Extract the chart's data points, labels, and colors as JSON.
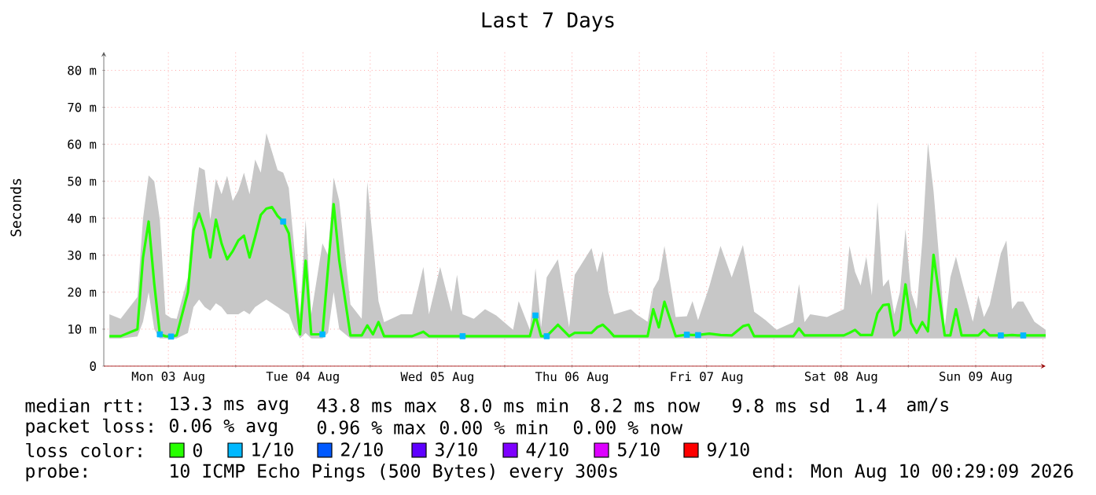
{
  "chart_data": {
    "type": "line",
    "title": "Last 7 Days",
    "ylabel": "Seconds",
    "legend_title": "loss color:",
    "legend": "bottom",
    "grid": true,
    "xlim": [
      "2026-08-03T00:29",
      "2026-08-10T00:29"
    ],
    "xticks": [
      {
        "value": "2026-08-03T12:00",
        "label": "Mon 03 Aug"
      },
      {
        "value": "2026-08-04T00:00",
        "label": null
      },
      {
        "value": "2026-08-04T12:00",
        "label": "Tue 04 Aug"
      },
      {
        "value": "2026-08-05T00:00",
        "label": null
      },
      {
        "value": "2026-08-05T12:00",
        "label": "Wed 05 Aug"
      },
      {
        "value": "2026-08-06T00:00",
        "label": null
      },
      {
        "value": "2026-08-06T12:00",
        "label": "Thu 06 Aug"
      },
      {
        "value": "2026-08-07T00:00",
        "label": null
      },
      {
        "value": "2026-08-07T12:00",
        "label": "Fri 07 Aug"
      },
      {
        "value": "2026-08-08T00:00",
        "label": null
      },
      {
        "value": "2026-08-08T12:00",
        "label": "Sat 08 Aug"
      },
      {
        "value": "2026-08-09T00:00",
        "label": null
      },
      {
        "value": "2026-08-09T12:00",
        "label": "Sun 09 Aug"
      },
      {
        "value": "2026-08-10T00:00",
        "label": null
      }
    ],
    "ylim": [
      0,
      85
    ],
    "yticks": [
      0,
      {
        "value": 10,
        "label": "10 m"
      },
      {
        "value": 20,
        "label": "20 m"
      },
      {
        "value": 30,
        "label": "30 m"
      },
      {
        "value": 40,
        "label": "40 m"
      },
      {
        "value": 50,
        "label": "50 m"
      },
      {
        "value": 60,
        "label": "60 m"
      },
      {
        "value": 70,
        "label": "70 m"
      },
      {
        "value": 80,
        "label": "80 m"
      }
    ],
    "series": [
      {
        "name": "0",
        "color": "#26ff00",
        "x": [
          "2026-08-03T01:29",
          "2026-08-03T03:29",
          "2026-08-03T06:29",
          "2026-08-03T07:29",
          "2026-08-03T08:29",
          "2026-08-03T09:29",
          "2026-08-03T10:29",
          "2026-08-03T11:29",
          "2026-08-03T12:29",
          "2026-08-03T13:29",
          "2026-08-03T15:29",
          "2026-08-03T16:29",
          "2026-08-03T17:29",
          "2026-08-03T18:29",
          "2026-08-03T19:29",
          "2026-08-03T20:29",
          "2026-08-03T21:29",
          "2026-08-03T22:29",
          "2026-08-03T23:29",
          "2026-08-04T00:29",
          "2026-08-04T01:29",
          "2026-08-04T02:29",
          "2026-08-04T03:29",
          "2026-08-04T04:29",
          "2026-08-04T05:29",
          "2026-08-04T06:29",
          "2026-08-04T07:29",
          "2026-08-04T08:29",
          "2026-08-04T09:29",
          "2026-08-04T10:29",
          "2026-08-04T11:29",
          "2026-08-04T12:29",
          "2026-08-04T13:29",
          "2026-08-04T15:29",
          "2026-08-04T16:29",
          "2026-08-04T17:29",
          "2026-08-04T18:29",
          "2026-08-04T20:29",
          "2026-08-04T22:29",
          "2026-08-04T23:29",
          "2026-08-05T00:29",
          "2026-08-05T01:29",
          "2026-08-05T02:29",
          "2026-08-05T05:29",
          "2026-08-05T07:29",
          "2026-08-05T09:29",
          "2026-08-05T10:29",
          "2026-08-05T12:29",
          "2026-08-05T14:29",
          "2026-08-05T15:29",
          "2026-08-05T16:29",
          "2026-08-05T18:29",
          "2026-08-05T20:29",
          "2026-08-05T22:29",
          "2026-08-06T01:29",
          "2026-08-06T02:29",
          "2026-08-06T04:29",
          "2026-08-06T05:29",
          "2026-08-06T06:29",
          "2026-08-06T07:29",
          "2026-08-06T09:29",
          "2026-08-06T11:29",
          "2026-08-06T12:29",
          "2026-08-06T15:29",
          "2026-08-06T16:29",
          "2026-08-06T17:29",
          "2026-08-06T18:29",
          "2026-08-06T19:29",
          "2026-08-06T22:29",
          "2026-08-06T23:29",
          "2026-08-07T01:29",
          "2026-08-07T02:29",
          "2026-08-07T03:29",
          "2026-08-07T04:29",
          "2026-08-07T06:29",
          "2026-08-07T08:29",
          "2026-08-07T09:29",
          "2026-08-07T10:29",
          "2026-08-07T12:29",
          "2026-08-07T14:29",
          "2026-08-07T16:29",
          "2026-08-07T18:29",
          "2026-08-07T19:29",
          "2026-08-07T20:29",
          "2026-08-07T22:29",
          "2026-08-08T00:29",
          "2026-08-08T03:29",
          "2026-08-08T04:29",
          "2026-08-08T05:29",
          "2026-08-08T06:29",
          "2026-08-08T09:29",
          "2026-08-08T12:29",
          "2026-08-08T13:29",
          "2026-08-08T14:29",
          "2026-08-08T15:29",
          "2026-08-08T16:29",
          "2026-08-08T17:29",
          "2026-08-08T18:29",
          "2026-08-08T19:29",
          "2026-08-08T20:29",
          "2026-08-08T21:29",
          "2026-08-08T22:29",
          "2026-08-08T23:29",
          "2026-08-09T00:29",
          "2026-08-09T01:29",
          "2026-08-09T02:29",
          "2026-08-09T03:29",
          "2026-08-09T04:29",
          "2026-08-09T06:29",
          "2026-08-09T07:29",
          "2026-08-09T08:29",
          "2026-08-09T09:29",
          "2026-08-09T11:29",
          "2026-08-09T12:29",
          "2026-08-09T13:29",
          "2026-08-09T14:29",
          "2026-08-09T16:29",
          "2026-08-09T17:29",
          "2026-08-09T18:29",
          "2026-08-09T19:29",
          "2026-08-09T20:29",
          "2026-08-09T22:29",
          "2026-08-10T00:29"
        ],
        "values": [
          8.1,
          8.1,
          10,
          29.4,
          39.1,
          22.3,
          8.6,
          8.1,
          8.0,
          8.3,
          20,
          36.7,
          41.3,
          36.6,
          29.4,
          39.6,
          33.2,
          28.9,
          31.1,
          34,
          35.3,
          29.4,
          35,
          40.9,
          42.6,
          43,
          40.6,
          39.1,
          35.9,
          22.6,
          8.6,
          28.5,
          8.6,
          8.6,
          26.5,
          43.8,
          28.5,
          8.3,
          8.3,
          11,
          8.6,
          11.9,
          8.1,
          8.1,
          8.1,
          9.3,
          8.1,
          8.1,
          8.1,
          8.1,
          8.1,
          8.1,
          8.1,
          8.1,
          8.1,
          8.1,
          8.1,
          13.7,
          8.1,
          8.1,
          11.2,
          8.1,
          9,
          9,
          10.5,
          11.2,
          9.8,
          8.1,
          8.1,
          8.1,
          8.1,
          15.4,
          10.5,
          17.4,
          8.1,
          8.5,
          8.4,
          8.4,
          8.8,
          8.4,
          8.3,
          10.8,
          11.2,
          8.1,
          8.1,
          8.1,
          8.1,
          10.2,
          8.3,
          8.3,
          8.3,
          8.3,
          9,
          9.8,
          8.4,
          8.4,
          8.4,
          14.3,
          16.5,
          16.7,
          8.3,
          9.8,
          22.1,
          11.6,
          9,
          11.9,
          9.4,
          30.1,
          8.3,
          8.3,
          15.4,
          8.3,
          8.3,
          8.3,
          9.8,
          8.3,
          8.3,
          8.3,
          8.4,
          8.3,
          8.3,
          8.3,
          8.3
        ],
        "upper": [
          14,
          12.8,
          18.7,
          40,
          51.6,
          50,
          39.6,
          14,
          13,
          12.8,
          24,
          42.6,
          53.8,
          53,
          39.6,
          50.6,
          46.5,
          51.5,
          44.7,
          47.5,
          52.3,
          46.5,
          55.9,
          52.3,
          63,
          58,
          53,
          52.3,
          48.2,
          31.5,
          14,
          39.6,
          14,
          33.2,
          30,
          51,
          44.7,
          16.7,
          12.8,
          49.8,
          34,
          17.6,
          11.9,
          14,
          14,
          26.8,
          14,
          26.8,
          14.7,
          24.7,
          14,
          12.8,
          15.4,
          13.7,
          9.8,
          17.6,
          9.8,
          26.5,
          10.5,
          24,
          28.9,
          10.5,
          24.7,
          31.9,
          25.4,
          31.1,
          20,
          14,
          15.4,
          14,
          12,
          20.8,
          23.5,
          32.5,
          13.3,
          13.5,
          17.6,
          12.4,
          21.5,
          32.5,
          24,
          32.8,
          24,
          14.7,
          12.5,
          9.8,
          11.9,
          22.2,
          11.9,
          14,
          13.3,
          15.4,
          32.5,
          25.5,
          21.8,
          29.6,
          19.1,
          44.4,
          21.5,
          23.5,
          14,
          20,
          37,
          20,
          15.4,
          34,
          60.4,
          47.4,
          10.5,
          24,
          29.6,
          23.5,
          12,
          19.1,
          13.3,
          16.5,
          30.5,
          34,
          15.4,
          17.5,
          17.5,
          12,
          9.8
        ],
        "lower": [
          7.5,
          7.5,
          8,
          12,
          20,
          10,
          7.5,
          7.5,
          7.5,
          7.5,
          9,
          16,
          18,
          16,
          15,
          17,
          16,
          14,
          14,
          14,
          15,
          14,
          16,
          17,
          18,
          17,
          16,
          15,
          14,
          10,
          7.5,
          9,
          7.5,
          7.5,
          9,
          20,
          10,
          7.5,
          7.5,
          7.5,
          7.5,
          7.5,
          7.5,
          7.5,
          7.5,
          7.5,
          7.5,
          7.5,
          7.5,
          7.5,
          7.5,
          7.5,
          7.5,
          7.5,
          7.5,
          7.5,
          7.5,
          7.5,
          7.5,
          7.5,
          7.5,
          7.5,
          7.5,
          7.5,
          7.5,
          7.5,
          7.5,
          7.5,
          7.5,
          7.5,
          7.5,
          7.5,
          7.5,
          7.5,
          7.5,
          7.5,
          7.5,
          7.5,
          7.5,
          7.5,
          7.5,
          7.5,
          7.5,
          7.5,
          7.5,
          7.5,
          7.5,
          7.5,
          7.5,
          7.5,
          7.5,
          7.5,
          7.5,
          7.5,
          7.5,
          7.5,
          7.5,
          7.5,
          7.5,
          7.5,
          7.5,
          7.5,
          7.5,
          7.5,
          7.5,
          7.5,
          7.5,
          7.5,
          7.5,
          7.5,
          7.5,
          7.5,
          7.5,
          7.5,
          7.5,
          7.5,
          7.5,
          7.5,
          7.5,
          7.5,
          7.5,
          7.5,
          7.5
        ]
      },
      {
        "name": "1/10",
        "color": "#00b8ff",
        "type": "scatter",
        "marker": "square",
        "x": [
          "2026-08-03T10:29",
          "2026-08-03T12:29",
          "2026-08-04T08:29",
          "2026-08-04T15:29",
          "2026-08-05T16:29",
          "2026-08-06T05:29",
          "2026-08-06T07:29",
          "2026-08-07T08:29",
          "2026-08-07T10:29",
          "2026-08-09T16:29",
          "2026-08-09T20:29"
        ],
        "values": [
          8.6,
          8.0,
          39.1,
          8.6,
          8.1,
          13.7,
          8.1,
          8.5,
          8.4,
          8.3,
          8.3
        ]
      },
      {
        "name": "2/10",
        "color": "#0059ff"
      },
      {
        "name": "3/10",
        "color": "#5e00ff"
      },
      {
        "name": "4/10",
        "color": "#7e00ff"
      },
      {
        "name": "5/10",
        "color": "#dd00ff"
      },
      {
        "name": "9/10",
        "color": "#ff0000"
      }
    ],
    "annotations": [
      "median rtt:",
      "13.3 ms avg",
      "43.8 ms max",
      "8.0 ms min",
      "8.2 ms now",
      "9.8 ms sd",
      "1.4",
      "am/s",
      "packet loss:",
      "0.06 % avg",
      "0.96 % max",
      "0.00 % min",
      "0.00 % now",
      "probe:",
      "10 ICMP Echo Pings (500 Bytes) every 300s",
      "end: Mon Aug 10 00:29:09 2026"
    ]
  }
}
